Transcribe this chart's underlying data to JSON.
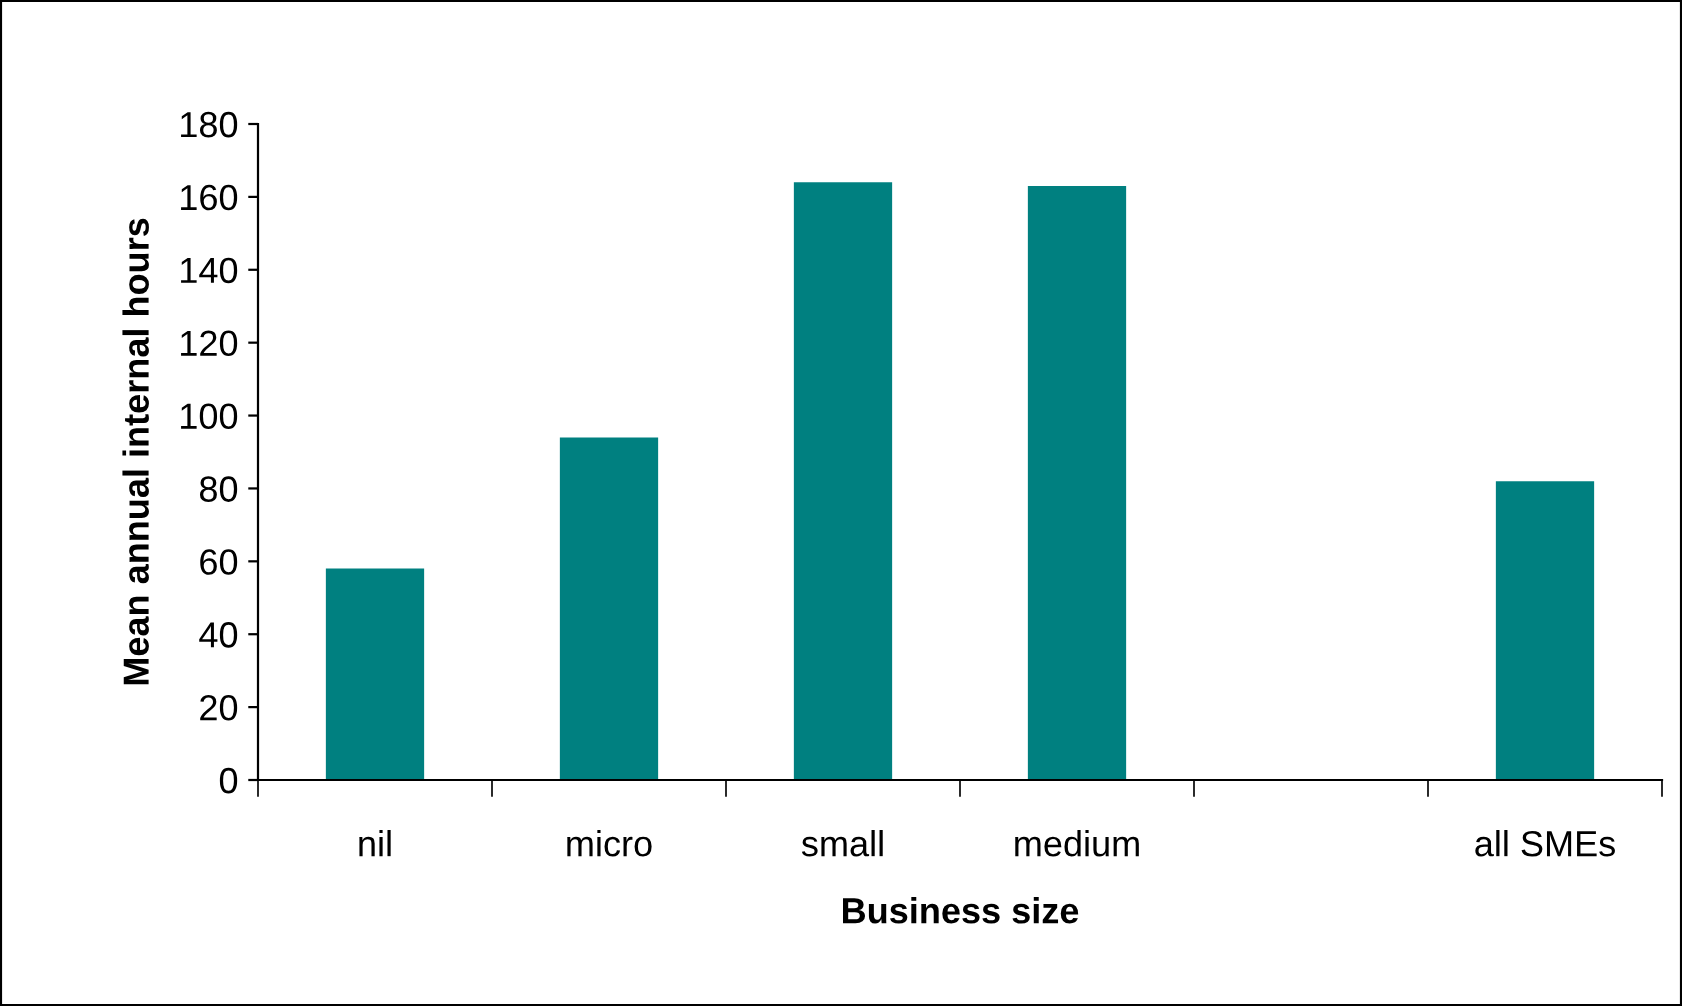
{
  "chart_data": {
    "type": "bar",
    "xlabel": "Business size",
    "ylabel": "Mean annual internal hours",
    "categories": [
      "nil",
      "micro",
      "small",
      "medium",
      null,
      "all SMEs"
    ],
    "values": [
      58,
      94,
      164,
      163,
      null,
      82
    ],
    "color": "#008080",
    "ylim": [
      0,
      180
    ],
    "yticks": [
      0,
      20,
      40,
      60,
      80,
      100,
      120,
      140,
      160,
      180
    ],
    "grid": false,
    "legend": false
  }
}
